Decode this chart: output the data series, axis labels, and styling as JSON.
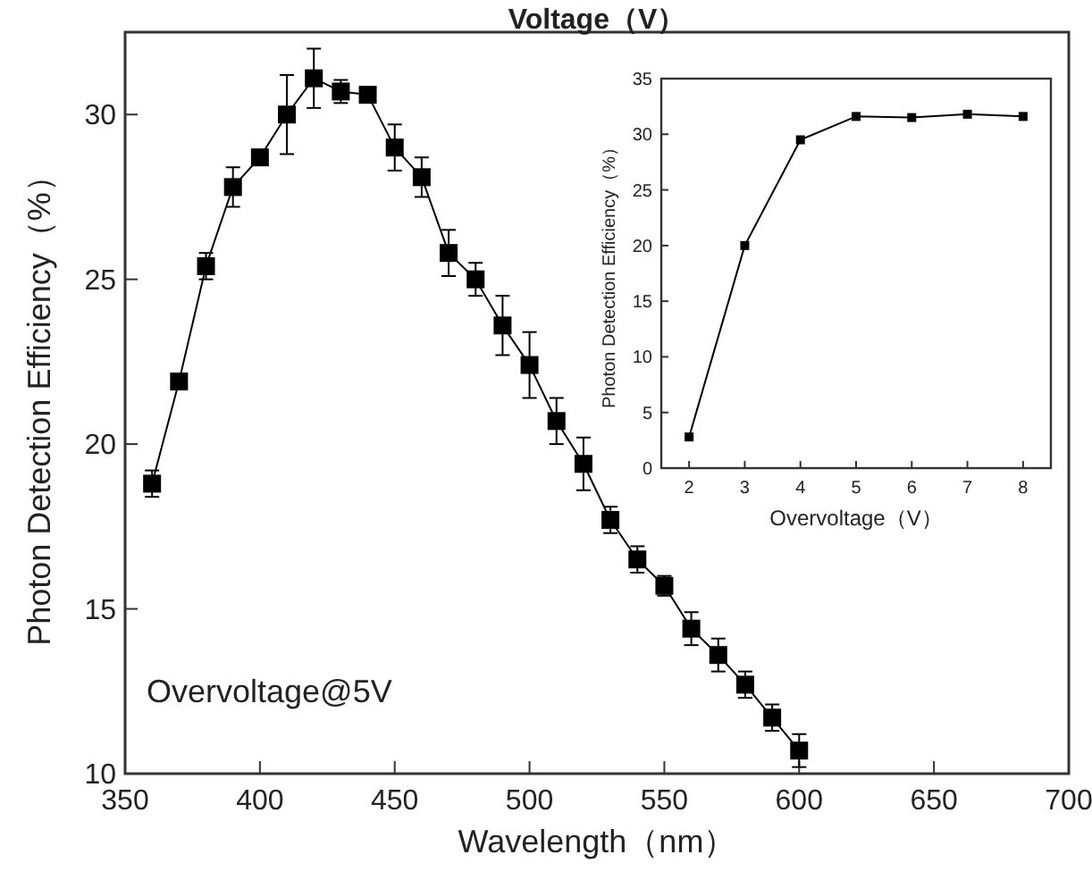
{
  "chart_data": [
    {
      "type": "line",
      "title": "Voltage（V）",
      "xlabel": "Wavelength（nm）",
      "ylabel": "Photon Detection Efficiency（%）",
      "annotations": [
        "Overvoltage@5V"
      ],
      "marker": "square",
      "line_style": "solid",
      "grid": false,
      "x": [
        360,
        370,
        380,
        390,
        400,
        410,
        420,
        430,
        440,
        450,
        460,
        470,
        480,
        490,
        500,
        510,
        520,
        530,
        540,
        550,
        560,
        570,
        580,
        590,
        600
      ],
      "series": [
        {
          "color": "#000000",
          "values": [
            18.8,
            21.9,
            25.4,
            27.8,
            28.7,
            30.0,
            31.1,
            30.7,
            30.6,
            29.0,
            28.1,
            25.8,
            25.0,
            23.6,
            22.4,
            20.7,
            19.4,
            17.7,
            16.5,
            15.7,
            14.4,
            13.6,
            12.7,
            11.7,
            10.7
          ],
          "errors": [
            0.4,
            null,
            0.4,
            0.6,
            null,
            1.2,
            0.9,
            0.35,
            null,
            0.7,
            0.6,
            0.7,
            0.5,
            0.9,
            1.0,
            0.7,
            0.8,
            0.4,
            0.4,
            0.3,
            0.5,
            0.5,
            0.4,
            0.4,
            0.5
          ]
        }
      ],
      "xlim": [
        350,
        700
      ],
      "xticks": [
        350,
        400,
        450,
        500,
        550,
        600,
        650,
        700
      ],
      "ylim": [
        10,
        32.5
      ],
      "yticks": [
        10,
        15,
        20,
        25,
        30
      ]
    },
    {
      "type": "line",
      "xlabel": "Overvoltage（V）",
      "ylabel": "Photon Detection Efficiency（%）",
      "marker": "square",
      "line_style": "solid",
      "grid": false,
      "x": [
        2,
        3,
        4,
        5,
        6,
        7,
        8
      ],
      "series": [
        {
          "color": "#000000",
          "values": [
            2.8,
            20.0,
            29.5,
            31.6,
            31.5,
            31.8,
            31.6
          ]
        }
      ],
      "xlim": [
        1.5,
        8.5
      ],
      "xticks": [
        2,
        3,
        4,
        5,
        6,
        7,
        8
      ],
      "ylim": [
        0,
        35
      ],
      "yticks": [
        0,
        5,
        10,
        15,
        20,
        25,
        30,
        35
      ]
    }
  ]
}
